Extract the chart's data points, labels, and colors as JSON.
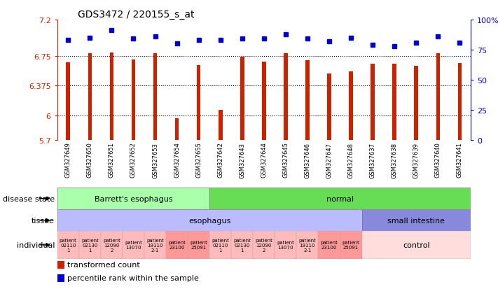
{
  "title": "GDS3472 / 220155_s_at",
  "samples": [
    "GSM327649",
    "GSM327650",
    "GSM327651",
    "GSM327652",
    "GSM327653",
    "GSM327654",
    "GSM327655",
    "GSM327642",
    "GSM327643",
    "GSM327644",
    "GSM327645",
    "GSM327646",
    "GSM327647",
    "GSM327648",
    "GSM327637",
    "GSM327638",
    "GSM327639",
    "GSM327640",
    "GSM327641"
  ],
  "red_values": [
    6.67,
    6.78,
    6.79,
    6.7,
    6.78,
    5.97,
    6.63,
    6.07,
    6.74,
    6.68,
    6.78,
    6.69,
    6.53,
    6.55,
    6.65,
    6.65,
    6.62,
    6.78,
    6.66
  ],
  "blue_values": [
    83,
    85,
    91,
    84,
    86,
    80,
    83,
    83,
    84,
    84,
    88,
    84,
    82,
    85,
    79,
    78,
    81,
    86,
    81
  ],
  "ymin": 5.7,
  "ymax": 7.2,
  "yticks": [
    5.7,
    6.0,
    6.375,
    6.75,
    7.2
  ],
  "ytick_labels": [
    "5.7",
    "6",
    "6.375",
    "6.75",
    "7.2"
  ],
  "right_yticks": [
    0,
    25,
    50,
    75,
    100
  ],
  "right_ytick_labels": [
    "0",
    "25",
    "50",
    "75",
    "100%"
  ],
  "grid_lines": [
    6.0,
    6.375,
    6.75
  ],
  "bar_color": "#cc2200",
  "blue_color": "#0000cc",
  "disease_state_groups": [
    {
      "label": "Barrett's esophagus",
      "start": 0,
      "end": 7,
      "color": "#aaffaa"
    },
    {
      "label": "normal",
      "start": 7,
      "end": 19,
      "color": "#66dd55"
    }
  ],
  "tissue_groups": [
    {
      "label": "esophagus",
      "start": 0,
      "end": 14,
      "color": "#bbbbff"
    },
    {
      "label": "small intestine",
      "start": 14,
      "end": 19,
      "color": "#8888dd"
    }
  ],
  "individual_cells": [
    {
      "label": "patient\n02110\n1",
      "start": 0,
      "end": 1,
      "color": "#ffbbbb"
    },
    {
      "label": "patient\n02130\n1",
      "start": 1,
      "end": 2,
      "color": "#ffbbbb"
    },
    {
      "label": "patient\n12090\n2",
      "start": 2,
      "end": 3,
      "color": "#ffbbbb"
    },
    {
      "label": "patient\n13070",
      "start": 3,
      "end": 4,
      "color": "#ffbbbb"
    },
    {
      "label": "patient\n19110\n2-1",
      "start": 4,
      "end": 5,
      "color": "#ffbbbb"
    },
    {
      "label": "patient\n23100",
      "start": 5,
      "end": 6,
      "color": "#ff9999"
    },
    {
      "label": "patient\n25091",
      "start": 6,
      "end": 7,
      "color": "#ff9999"
    },
    {
      "label": "patient\n02110\n1",
      "start": 7,
      "end": 8,
      "color": "#ffbbbb"
    },
    {
      "label": "patient\n02130\n1",
      "start": 8,
      "end": 9,
      "color": "#ffbbbb"
    },
    {
      "label": "patient\n12090\n2",
      "start": 9,
      "end": 10,
      "color": "#ffbbbb"
    },
    {
      "label": "patient\n13070",
      "start": 10,
      "end": 11,
      "color": "#ffbbbb"
    },
    {
      "label": "patient\n19110\n2-1",
      "start": 11,
      "end": 12,
      "color": "#ffbbbb"
    },
    {
      "label": "patient\n23100",
      "start": 12,
      "end": 13,
      "color": "#ff9999"
    },
    {
      "label": "patient\n25091",
      "start": 13,
      "end": 14,
      "color": "#ff9999"
    },
    {
      "label": "control",
      "start": 14,
      "end": 19,
      "color": "#ffdddd",
      "merged": true
    }
  ],
  "bg_color": "#ffffff",
  "left_label_color": "#cc2200",
  "right_label_color": "#0000cc",
  "legend_items": [
    {
      "color": "#cc2200",
      "label": "transformed count"
    },
    {
      "color": "#0000cc",
      "label": "percentile rank within the sample"
    }
  ]
}
